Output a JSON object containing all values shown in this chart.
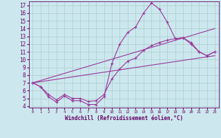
{
  "xlabel": "Windchill (Refroidissement éolien,°C)",
  "xlim": [
    -0.5,
    23.5
  ],
  "ylim": [
    3.8,
    17.5
  ],
  "xticks": [
    0,
    1,
    2,
    3,
    4,
    5,
    6,
    7,
    8,
    9,
    10,
    11,
    12,
    13,
    14,
    15,
    16,
    17,
    18,
    19,
    20,
    21,
    22,
    23
  ],
  "yticks": [
    4,
    5,
    6,
    7,
    8,
    9,
    10,
    11,
    12,
    13,
    14,
    15,
    16,
    17
  ],
  "bg_color": "#cce8ee",
  "line_color": "#993399",
  "grid_color": "#aacccc",
  "series": [
    {
      "x": [
        0,
        1,
        2,
        3,
        4,
        5,
        6,
        7,
        8,
        9,
        10,
        11,
        12,
        13,
        14,
        15,
        16,
        17,
        18,
        19,
        20,
        21,
        22,
        23
      ],
      "y": [
        7.0,
        6.5,
        5.2,
        4.5,
        5.3,
        4.7,
        4.7,
        4.2,
        4.2,
        5.2,
        9.5,
        12.0,
        13.5,
        14.2,
        16.0,
        17.3,
        16.5,
        14.8,
        12.7,
        12.8,
        12.0,
        11.0,
        10.5,
        11.0
      ]
    },
    {
      "x": [
        0,
        1,
        2,
        3,
        4,
        5,
        6,
        7,
        8,
        9,
        10,
        11,
        12,
        13,
        14,
        15,
        16,
        17,
        18,
        19,
        20,
        21,
        22,
        23
      ],
      "y": [
        7.0,
        6.5,
        5.5,
        4.8,
        5.5,
        5.0,
        5.0,
        4.6,
        4.7,
        5.5,
        7.5,
        8.8,
        9.8,
        10.2,
        11.2,
        11.8,
        12.2,
        12.5,
        12.7,
        12.8,
        12.2,
        11.0,
        10.5,
        11.0
      ]
    },
    {
      "x": [
        0,
        23
      ],
      "y": [
        7.0,
        10.5
      ]
    },
    {
      "x": [
        0,
        23
      ],
      "y": [
        7.0,
        14.0
      ]
    }
  ]
}
